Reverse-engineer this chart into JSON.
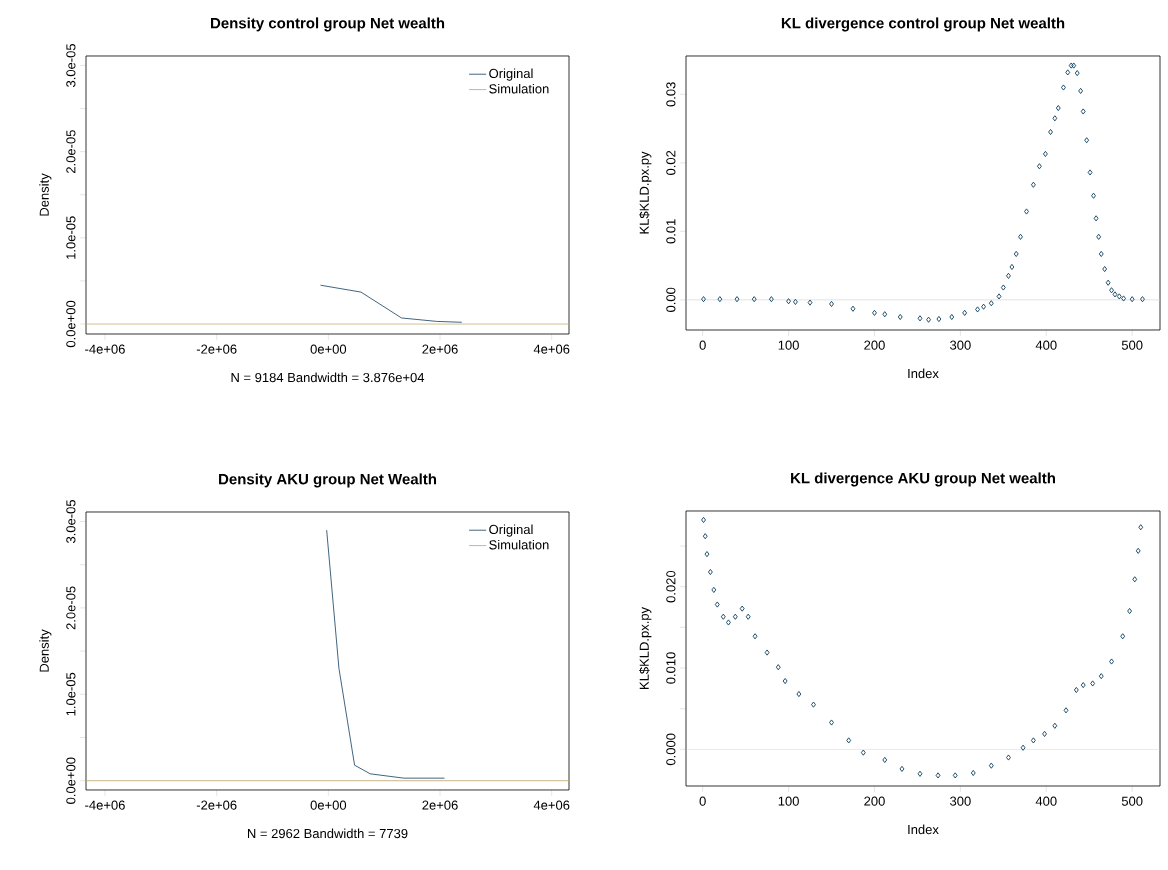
{
  "chart_data": [
    {
      "type": "line",
      "title": "Density control group Net wealth",
      "xlabel": "N = 9184   Bandwidth = 3.876e+04",
      "ylabel": "Density",
      "legend": "top right",
      "xlim": [
        -4340000,
        4310000
      ],
      "ylim": [
        -1.16e-06,
        3.11e-05
      ],
      "xticks": [
        {
          "value": -4000000,
          "label": "-4e+06"
        },
        {
          "value": -2000000,
          "label": "-2e+06"
        },
        {
          "value": 0,
          "label": "0e+00"
        },
        {
          "value": 2000000,
          "label": "2e+06"
        },
        {
          "value": 4000000,
          "label": "4e+06"
        }
      ],
      "yticks": [
        {
          "value": 0,
          "label": "0.0e+00"
        },
        {
          "value": 5e-06,
          "label": null
        },
        {
          "value": 1e-05,
          "label": "1.0e-05"
        },
        {
          "value": 1.5e-05,
          "label": null
        },
        {
          "value": 2e-05,
          "label": "2.0e-05"
        },
        {
          "value": 2.5e-05,
          "label": null
        },
        {
          "value": 3e-05,
          "label": "3.0e-05"
        }
      ],
      "series": [
        {
          "name": "Original",
          "color": "#2b5470",
          "x": [
            -140000,
            585000,
            1310000,
            1940000,
            2390000
          ],
          "values": [
            4.5e-06,
            3.7e-06,
            7e-07,
            3e-07,
            2e-07
          ]
        },
        {
          "name": "Simulation",
          "color": "#c4ae78",
          "x": [
            -4340000,
            4310000
          ],
          "values": [
            0,
            0
          ]
        }
      ]
    },
    {
      "type": "scatter",
      "title": "KL divergence control group Net wealth",
      "xlabel": "Index",
      "ylabel": "KL$KLD.px.py",
      "marker": "diamond",
      "xlim": [
        -19.4,
        532.4
      ],
      "ylim": [
        -0.0044,
        0.0356
      ],
      "xticks": [
        0,
        100,
        200,
        300,
        400,
        500
      ],
      "yticks": [
        {
          "value": 0,
          "label": "0.00"
        },
        {
          "value": 0.01,
          "label": "0.01"
        },
        {
          "value": 0.02,
          "label": "0.02"
        },
        {
          "value": 0.03,
          "label": "0.03"
        }
      ],
      "ref_lines": [
        {
          "axis": "y",
          "value": 0,
          "color": "#cccccc"
        }
      ],
      "series": [
        {
          "color": "#0b3d5c",
          "x": [
            1,
            20,
            40,
            60,
            80,
            100,
            108,
            125,
            150,
            175,
            200,
            212,
            230,
            253,
            263,
            275,
            290,
            305,
            320,
            327,
            336,
            345,
            350,
            356,
            360,
            365,
            370,
            377,
            385,
            392,
            399,
            405,
            410,
            414,
            420,
            425,
            429,
            432,
            436,
            440,
            443,
            447,
            451,
            455,
            458,
            461,
            464,
            468,
            472,
            476,
            480,
            485,
            490,
            500,
            512
          ],
          "values": [
            0.0001,
            0.0001,
            0.0001,
            0.0001,
            0.0001,
            -0.0002,
            -0.0003,
            -0.0004,
            -0.0006,
            -0.0013,
            -0.0019,
            -0.0021,
            -0.0025,
            -0.0027,
            -0.0029,
            -0.0028,
            -0.0025,
            -0.0019,
            -0.0014,
            -0.001,
            -0.0005,
            0.0005,
            0.0018,
            0.0035,
            0.0048,
            0.0067,
            0.0092,
            0.0129,
            0.0168,
            0.0195,
            0.0213,
            0.0245,
            0.0265,
            0.028,
            0.031,
            0.0332,
            0.0342,
            0.0342,
            0.0331,
            0.0305,
            0.0275,
            0.0233,
            0.0186,
            0.0152,
            0.0119,
            0.0092,
            0.0067,
            0.0045,
            0.0025,
            0.0014,
            0.0008,
            0.0005,
            0.0002,
            0.0001,
            0.0001
          ]
        }
      ]
    },
    {
      "type": "line",
      "title": "Density AKU group Net Wealth",
      "xlabel": "N = 2962   Bandwidth = 7739",
      "ylabel": "Density",
      "legend": "top right",
      "xlim": [
        -4340000,
        4310000
      ],
      "ylim": [
        -1.07e-06,
        3.11e-05
      ],
      "xticks": [
        {
          "value": -4000000,
          "label": "-4e+06"
        },
        {
          "value": -2000000,
          "label": "-2e+06"
        },
        {
          "value": 0,
          "label": "0e+00"
        },
        {
          "value": 2000000,
          "label": "2e+06"
        },
        {
          "value": 4000000,
          "label": "4e+06"
        }
      ],
      "yticks": [
        {
          "value": 0,
          "label": "0.0e+00"
        },
        {
          "value": 5e-06,
          "label": null
        },
        {
          "value": 1e-05,
          "label": "1.0e-05"
        },
        {
          "value": 1.5e-05,
          "label": null
        },
        {
          "value": 2e-05,
          "label": "2.0e-05"
        },
        {
          "value": 2.5e-05,
          "label": null
        },
        {
          "value": 3e-05,
          "label": "3.0e-05"
        }
      ],
      "series": [
        {
          "name": "Original",
          "color": "#2b5470",
          "x": [
            -30000,
            190000,
            470000,
            750000,
            1350000,
            2080000
          ],
          "values": [
            2.9e-05,
            1.3e-05,
            1.8e-06,
            8e-07,
            3e-07,
            3e-07
          ]
        },
        {
          "name": "Simulation",
          "color": "#c4ae78",
          "x": [
            -4340000,
            4310000
          ],
          "values": [
            0,
            0
          ]
        }
      ]
    },
    {
      "type": "scatter",
      "title": "KL divergence AKU group Net wealth",
      "xlabel": "Index",
      "ylabel": "KL$KLD.px.py",
      "marker": "diamond",
      "xlim": [
        -19.4,
        532.4
      ],
      "ylim": [
        -0.0045,
        0.0293
      ],
      "xticks": [
        0,
        100,
        200,
        300,
        400,
        500
      ],
      "yticks": [
        {
          "value": 0,
          "label": "0.000"
        },
        {
          "value": 0.005,
          "label": null
        },
        {
          "value": 0.01,
          "label": "0.010"
        },
        {
          "value": 0.015,
          "label": null
        },
        {
          "value": 0.02,
          "label": "0.020"
        },
        {
          "value": 0.025,
          "label": null
        }
      ],
      "ref_lines": [
        {
          "axis": "y",
          "value": 0,
          "color": "#cccccc"
        }
      ],
      "series": [
        {
          "color": "#0b3d5c",
          "x": [
            1,
            3,
            5,
            9,
            13,
            17,
            24,
            30,
            38,
            46,
            53,
            61,
            75,
            88,
            96,
            112,
            129,
            150,
            170,
            187,
            212,
            232,
            253,
            274,
            294,
            315,
            336,
            356,
            373,
            385,
            398,
            410,
            423,
            435,
            443,
            454,
            464,
            476,
            489,
            497,
            503,
            507,
            510
          ],
          "values": [
            0.0282,
            0.0262,
            0.024,
            0.0218,
            0.0196,
            0.0178,
            0.0163,
            0.0156,
            0.0163,
            0.0173,
            0.0163,
            0.0139,
            0.0119,
            0.0101,
            0.0084,
            0.0068,
            0.0055,
            0.0033,
            0.0011,
            -0.0004,
            -0.0013,
            -0.0024,
            -0.003,
            -0.0032,
            -0.0032,
            -0.0029,
            -0.002,
            -0.001,
            0.0002,
            0.0011,
            0.0019,
            0.0029,
            0.0048,
            0.0073,
            0.0079,
            0.0081,
            0.009,
            0.0108,
            0.0139,
            0.017,
            0.0209,
            0.0244,
            0.0273
          ]
        }
      ]
    }
  ]
}
